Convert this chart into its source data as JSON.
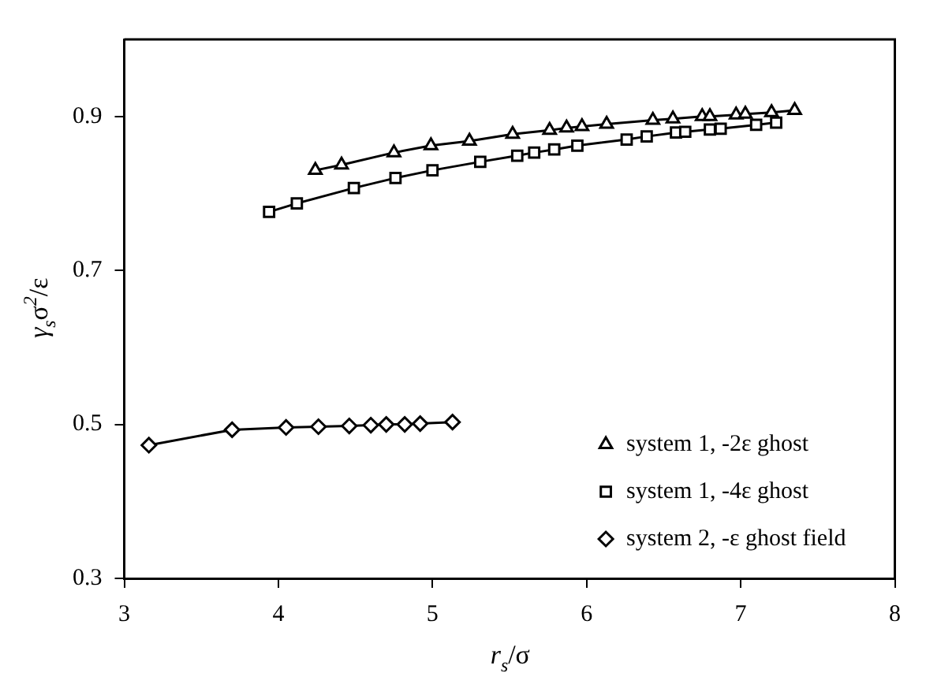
{
  "chart_data": {
    "type": "line",
    "xlabel": "r$_{s}$/σ",
    "ylabel": "γ$_{s}$σ$^{2}$/ε",
    "xlim": [
      3,
      8
    ],
    "xticks": [
      3,
      4,
      5,
      6,
      7,
      8
    ],
    "ylim": [
      0.3,
      1.0
    ],
    "yticks": [
      0.3,
      0.5,
      0.7,
      0.9
    ],
    "grid": false,
    "legend": "bottom right",
    "series": [
      {
        "name": "system 1, -2ε ghost",
        "color": "#000000",
        "marker": "triangle",
        "x": [
          4.24,
          4.41,
          4.75,
          4.99,
          5.24,
          5.52,
          5.76,
          5.87,
          5.97,
          6.13,
          6.43,
          6.56,
          6.75,
          6.8,
          6.97,
          7.03,
          7.2,
          7.35
        ],
        "values": [
          0.83,
          0.837,
          0.853,
          0.862,
          0.868,
          0.877,
          0.882,
          0.885,
          0.887,
          0.89,
          0.895,
          0.897,
          0.9,
          0.9,
          0.902,
          0.903,
          0.905,
          0.908
        ]
      },
      {
        "name": "system 1, -4ε ghost",
        "color": "#000000",
        "marker": "square",
        "x": [
          3.94,
          4.12,
          4.49,
          4.76,
          5.0,
          5.31,
          5.55,
          5.66,
          5.79,
          5.94,
          6.26,
          6.39,
          6.58,
          6.64,
          6.8,
          6.87,
          7.1,
          7.23
        ],
        "values": [
          0.776,
          0.787,
          0.807,
          0.82,
          0.83,
          0.841,
          0.849,
          0.853,
          0.857,
          0.862,
          0.87,
          0.874,
          0.879,
          0.88,
          0.883,
          0.884,
          0.889,
          0.892
        ]
      },
      {
        "name": "system 2, -ε ghost field",
        "color": "#000000",
        "marker": "diamond",
        "x": [
          3.16,
          3.7,
          4.05,
          4.26,
          4.46,
          4.6,
          4.7,
          4.82,
          4.92,
          5.13
        ],
        "values": [
          0.473,
          0.493,
          0.496,
          0.497,
          0.498,
          0.499,
          0.5,
          0.5,
          0.501,
          0.503
        ]
      }
    ]
  }
}
